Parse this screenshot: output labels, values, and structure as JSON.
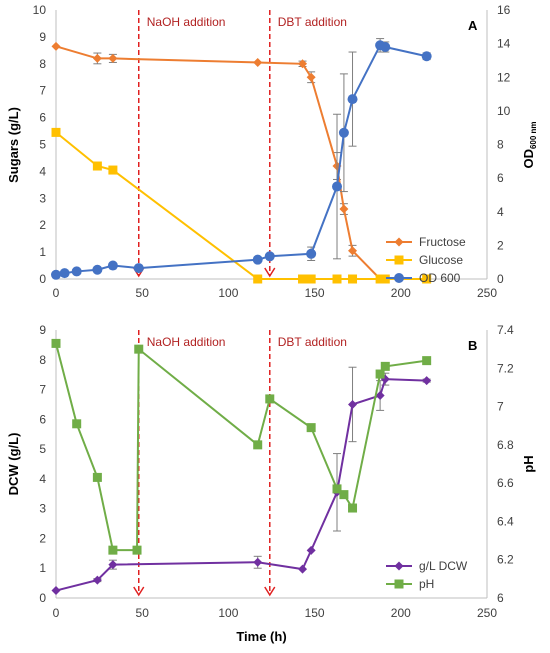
{
  "chart_data": [
    {
      "panel": "A",
      "type": "line",
      "xlabel": "",
      "ylabel": "Sugars (g/L)",
      "ylabel_right": "OD",
      "ylabel_right_sub": "600 nm",
      "xlim": [
        0,
        250
      ],
      "xticks": [
        0,
        50,
        100,
        150,
        200,
        250
      ],
      "ylim": [
        0,
        10
      ],
      "yticks": [
        0,
        1,
        2,
        3,
        4,
        5,
        6,
        7,
        8,
        9,
        10
      ],
      "ylim_right": [
        0,
        16
      ],
      "yticks_right": [
        0,
        2,
        4,
        6,
        8,
        10,
        12,
        14,
        16
      ],
      "grid": false,
      "legend": "bottom-right",
      "annotations": [
        {
          "text": "NaOH addition",
          "x": 48
        },
        {
          "text": "DBT addition",
          "x": 124
        }
      ],
      "series": [
        {
          "name": "Fructose",
          "axis": "left",
          "color": "#ed7d31",
          "marker": "diamond",
          "x": [
            0,
            24,
            33,
            117,
            143,
            148,
            163,
            167,
            172,
            188,
            191
          ],
          "y": [
            8.65,
            8.2,
            8.2,
            8.05,
            8.0,
            7.5,
            4.2,
            2.6,
            1.05,
            0,
            0
          ],
          "err": [
            0,
            0.2,
            0.15,
            0,
            0.1,
            0.2,
            0.5,
            0.2,
            0.2,
            0,
            0
          ]
        },
        {
          "name": "Glucose",
          "axis": "left",
          "color": "#ffc000",
          "marker": "square",
          "x": [
            0,
            24,
            33,
            117,
            143,
            148,
            163,
            172,
            188,
            191,
            215
          ],
          "y": [
            5.45,
            4.2,
            4.05,
            0,
            0,
            0,
            0,
            0,
            0,
            0,
            0
          ],
          "err": [
            0,
            0,
            0,
            0,
            0,
            0,
            0,
            0,
            0,
            0,
            0
          ]
        },
        {
          "name": "OD 600",
          "axis": "right",
          "color": "#4472c4",
          "marker": "circle",
          "x": [
            0,
            5,
            12,
            24,
            33,
            48,
            117,
            124,
            148,
            163,
            167,
            172,
            188,
            191,
            215
          ],
          "y": [
            0.25,
            0.35,
            0.45,
            0.55,
            0.8,
            0.65,
            1.15,
            1.35,
            1.5,
            5.5,
            8.7,
            10.7,
            13.9,
            13.8,
            13.25
          ],
          "err": [
            0,
            0,
            0,
            0,
            0,
            0,
            0,
            0,
            0.4,
            4.3,
            3.5,
            2.8,
            0.4,
            0.3,
            0.2
          ]
        }
      ]
    },
    {
      "panel": "B",
      "type": "line",
      "xlabel": "Time (h)",
      "ylabel": "DCW (g/L)",
      "ylabel_right": "pH",
      "xlim": [
        0,
        250
      ],
      "xticks": [
        0,
        50,
        100,
        150,
        200,
        250
      ],
      "ylim": [
        0,
        9
      ],
      "yticks": [
        0,
        1,
        2,
        3,
        4,
        5,
        6,
        7,
        8,
        9
      ],
      "ylim_right": [
        6,
        7.4
      ],
      "yticks_right": [
        6,
        6.2,
        6.4,
        6.6,
        6.8,
        7,
        7.2,
        7.4
      ],
      "grid": false,
      "legend": "bottom-right",
      "annotations": [
        {
          "text": "NaOH addition",
          "x": 48
        },
        {
          "text": "DBT addition",
          "x": 124
        }
      ],
      "series": [
        {
          "name": "g/L DCW",
          "axis": "left",
          "color": "#7030a0",
          "marker": "diamond",
          "x": [
            0,
            24,
            33,
            117,
            143,
            148,
            163,
            172,
            188,
            191,
            215
          ],
          "y": [
            0.25,
            0.6,
            1.12,
            1.2,
            0.97,
            1.6,
            3.55,
            6.5,
            6.8,
            7.35,
            7.3
          ],
          "err": [
            0,
            0.05,
            0.15,
            0.2,
            0,
            0,
            1.3,
            1.25,
            0.5,
            0.2,
            0.05
          ]
        },
        {
          "name": "pH",
          "axis": "right",
          "color": "#70ad47",
          "marker": "square",
          "x": [
            0,
            12,
            24,
            33,
            47,
            48,
            117,
            124,
            148,
            163,
            167,
            172,
            188,
            191,
            215
          ],
          "y": [
            7.33,
            6.91,
            6.63,
            6.25,
            6.25,
            7.3,
            6.8,
            7.04,
            6.89,
            6.57,
            6.54,
            6.47,
            7.17,
            7.21,
            7.24
          ],
          "err": [
            0,
            0,
            0,
            0,
            0,
            0,
            0,
            0,
            0,
            0,
            0,
            0,
            0,
            0,
            0
          ]
        }
      ]
    }
  ]
}
